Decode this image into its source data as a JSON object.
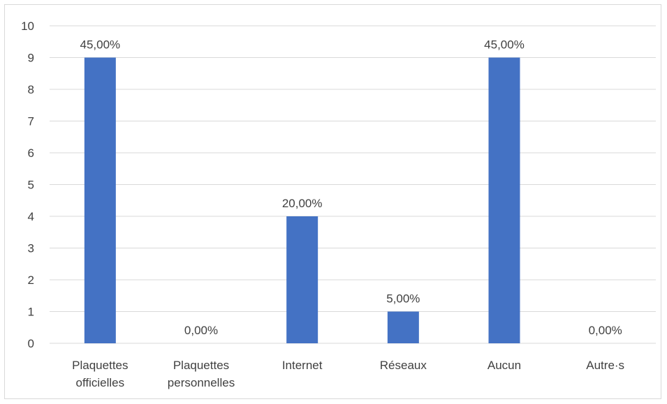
{
  "chart_data": {
    "type": "bar",
    "categories": [
      [
        "Plaquettes",
        "officielles"
      ],
      [
        "Plaquettes",
        "personnelles"
      ],
      [
        "Internet"
      ],
      [
        "Réseaux"
      ],
      [
        "Aucun"
      ],
      [
        "Autre·s"
      ]
    ],
    "values": [
      9,
      0,
      4,
      1,
      9,
      0
    ],
    "data_labels": [
      "45,00%",
      "0,00%",
      "20,00%",
      "5,00%",
      "45,00%",
      "0,00%"
    ],
    "yticks": [
      "0",
      "1",
      "2",
      "3",
      "4",
      "5",
      "6",
      "7",
      "8",
      "9",
      "10"
    ],
    "ylim": [
      0,
      10
    ],
    "grid": true,
    "legend": "none",
    "bar_color": "#4472c4",
    "grid_color": "#d9d9d9",
    "text_color": "#404040"
  }
}
